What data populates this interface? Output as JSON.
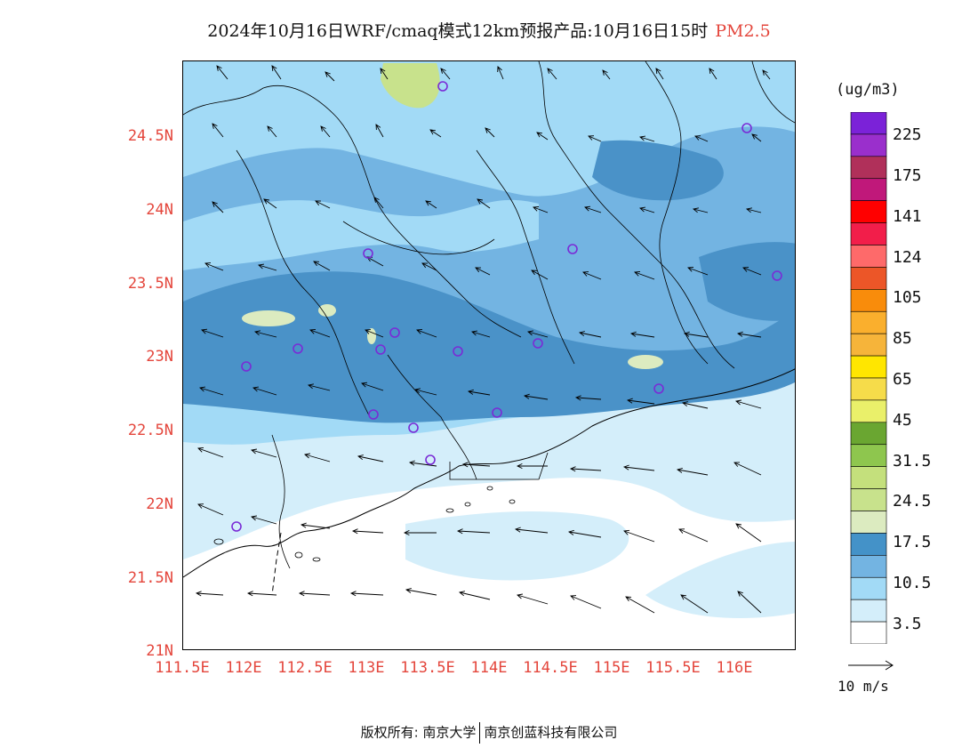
{
  "title": {
    "main": "2024年10月16日WRF/cmaq模式12km预报产品:10月16日15时",
    "pollutant": "PM2.5"
  },
  "map": {
    "lat_labels": [
      "24.5N",
      "24N",
      "23.5N",
      "23N",
      "22.5N",
      "22N",
      "21.5N",
      "21N"
    ],
    "lon_labels": [
      "111.5E",
      "112E",
      "112.5E",
      "113E",
      "113.5E",
      "114E",
      "114.5E",
      "115E",
      "115.5E",
      "116E"
    ],
    "lat_values": [
      24.5,
      24,
      23.5,
      23,
      22.5,
      22,
      21.5,
      21
    ],
    "lon_values": [
      111.5,
      112,
      112.5,
      113,
      113.5,
      114,
      114.5,
      115,
      115.5,
      116
    ],
    "lat_range": [
      21,
      25
    ],
    "lon_range": [
      111.5,
      116.5
    ]
  },
  "legend": {
    "unit": "(ug/m3)",
    "labels": [
      "225",
      "175",
      "141",
      "124",
      "105",
      "85",
      "65",
      "45",
      "31.5",
      "24.5",
      "17.5",
      "10.5",
      "3.5"
    ],
    "colors_top_to_bottom": [
      "#7b22d8",
      "#9a2fcc",
      "#b0305a",
      "#c0187a",
      "#ff0000",
      "#f21e4a",
      "#fe6a6a",
      "#ec5628",
      "#f98c0b",
      "#faaf2d",
      "#f6b43a",
      "#ffe600",
      "#f6dc4a",
      "#eaf06a",
      "#6aa631",
      "#8ec64e",
      "#c4e07c",
      "#c8e28c",
      "#dcebc0",
      "#4492c8",
      "#73b4e2",
      "#a2daf6",
      "#d4eefa",
      "#ffffff"
    ],
    "wind_reference": "10 m/s"
  },
  "footer": {
    "left": "版权所有: 南京大学",
    "right": "南京创蓝科技有限公司"
  },
  "colors": {
    "label_red": "#e4463c",
    "site_marker": "#7a2bd6"
  }
}
